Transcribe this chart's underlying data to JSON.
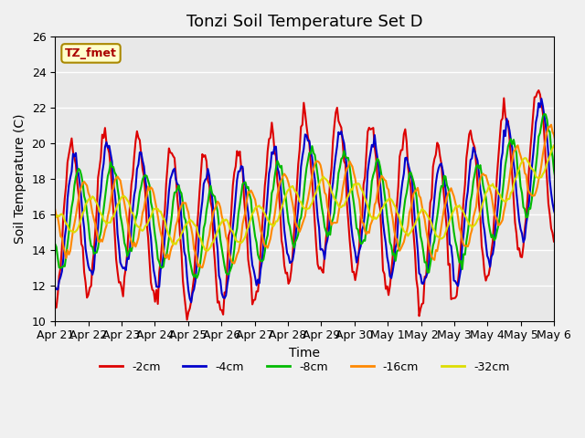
{
  "title": "Tonzi Soil Temperature Set D",
  "xlabel": "Time",
  "ylabel": "Soil Temperature (C)",
  "ylim": [
    10,
    26
  ],
  "yticks": [
    10,
    12,
    14,
    16,
    18,
    20,
    22,
    24,
    26
  ],
  "x_labels": [
    "Apr 21",
    "Apr 22",
    "Apr 23",
    "Apr 24",
    "Apr 25",
    "Apr 26",
    "Apr 27",
    "Apr 28",
    "Apr 29",
    "Apr 30",
    "May 1",
    "May 2",
    "May 3",
    "May 4",
    "May 5",
    "May 6"
  ],
  "series_colors": [
    "#dd0000",
    "#0000cc",
    "#00bb00",
    "#ff8800",
    "#dddd00"
  ],
  "series_labels": [
    "-2cm",
    "-4cm",
    "-8cm",
    "-16cm",
    "-32cm"
  ],
  "legend_label": "TZ_fmet",
  "fig_facecolor": "#f0f0f0",
  "ax_facecolor": "#e8e8e8",
  "title_fontsize": 13,
  "axis_fontsize": 10,
  "tick_fontsize": 9,
  "line_width": 1.5,
  "points_per_day": 24
}
